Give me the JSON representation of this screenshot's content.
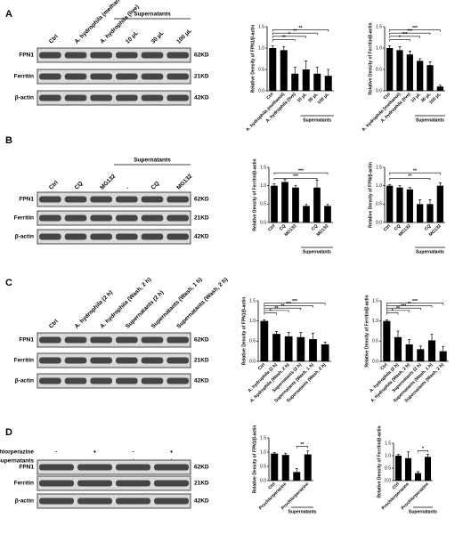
{
  "panels": [
    {
      "letter": "A",
      "lanes": [
        "Ctrl",
        "A. hydrophila (methanol)",
        "A. hydrophila (live)",
        "10 μL",
        "30 μL",
        "100 μL"
      ],
      "group_label": "Supernatants",
      "rows": [
        {
          "name": "FPN1",
          "size": "62KD"
        },
        {
          "name": "Ferritin",
          "size": "21KD"
        },
        {
          "name": "β-actin",
          "size": "42KD"
        }
      ]
    },
    {
      "letter": "B",
      "lanes": [
        "Ctrl",
        "CQ",
        "MG132",
        "-",
        "CQ",
        "MG132"
      ],
      "group_label": "Supernatants",
      "rows": [
        {
          "name": "FPN1",
          "size": "62KD"
        },
        {
          "name": "Ferritin",
          "size": "21KD"
        },
        {
          "name": "β-actin",
          "size": "42KD"
        }
      ]
    },
    {
      "letter": "C",
      "lanes": [
        "Ctrl",
        "A. hydrophila (2 h)",
        "A. hydrophila (Wash, 2 h)",
        "Supernatants (2 h)",
        "Supernatants (Wash, 1 h)",
        "Supernatants (Wash, 2 h)"
      ],
      "rows": [
        {
          "name": "FPN1",
          "size": "62KD"
        },
        {
          "name": "Ferritin",
          "size": "21KD"
        },
        {
          "name": "β-actin",
          "size": "42KD"
        }
      ]
    },
    {
      "letter": "D",
      "treatments": [
        {
          "name": "Prochlorperazine",
          "marks": [
            "-",
            "+",
            "-",
            "+"
          ]
        },
        {
          "name": "Supernatants",
          "marks": [
            "-",
            "-",
            "+",
            "+"
          ]
        }
      ],
      "rows": [
        {
          "name": "FPN1",
          "size": "62KD"
        },
        {
          "name": "Ferritin",
          "size": "21KD"
        },
        {
          "name": "β-actin",
          "size": "42KD"
        }
      ]
    }
  ],
  "chart_data": [
    {
      "type": "bar",
      "ylabel": "Relative Density of FPN1/β-actin",
      "categories": [
        "Ctrl",
        "A. hydrophila (methanol)",
        "A. hydrophila (live)",
        "10 μL",
        "30 μL",
        "100 μL"
      ],
      "group_label": "Supernatants",
      "values": [
        1.0,
        0.95,
        0.4,
        0.5,
        0.4,
        0.35
      ],
      "errors": [
        0.05,
        0.08,
        0.15,
        0.2,
        0.15,
        0.15
      ],
      "color": "#000000",
      "ylim": [
        0,
        1.5
      ],
      "yticks": [
        {
          "value": 0,
          "label": "0.0"
        },
        0.5,
        {
          "value": 1,
          "label": "1.0"
        },
        1.5
      ],
      "annotations": [
        "**",
        "*",
        "**",
        "**"
      ]
    },
    {
      "type": "bar",
      "ylabel": "Relative Density of Ferritin/β-actin",
      "categories": [
        "Ctrl",
        "A. hydrophila (methanol)",
        "A. hydrophila (live)",
        "10 μL",
        "30 μL",
        "100 μL"
      ],
      "group_label": "Supernatants",
      "values": [
        1.0,
        0.95,
        0.85,
        0.7,
        0.6,
        0.1
      ],
      "errors": [
        0.05,
        0.08,
        0.08,
        0.05,
        0.08,
        0.03
      ],
      "color": "#000000",
      "ylim": [
        0,
        1.5
      ],
      "yticks": [
        {
          "value": 0,
          "label": "0.0"
        },
        0.5,
        {
          "value": 1,
          "label": "1.0"
        },
        1.5
      ],
      "annotations": [
        "*",
        "***",
        "***",
        "***"
      ]
    },
    {
      "type": "bar",
      "ylabel": "Relative Density of Ferritin/β-actin",
      "categories": [
        "Ctrl",
        "CQ",
        "MG132",
        null,
        "CQ",
        "MG132"
      ],
      "group_label": "Supernatants",
      "values": [
        1.0,
        1.1,
        0.95,
        0.45,
        0.95,
        0.45
      ],
      "errors": [
        0.05,
        0.08,
        0.06,
        0.04,
        0.2,
        0.04
      ],
      "color": "#000000",
      "ylim": [
        0,
        1.5
      ],
      "yticks": [
        {
          "value": 0,
          "label": "0.0"
        },
        0.5,
        {
          "value": 1,
          "label": "1.0"
        },
        1.5
      ],
      "annotations": [
        "***",
        "***"
      ]
    },
    {
      "type": "bar",
      "ylabel": "Relative Density of FPN/β-actin",
      "categories": [
        "Ctrl",
        "CQ",
        "MG132",
        null,
        "CQ",
        "MG132"
      ],
      "group_label": "Supernatants",
      "values": [
        1.0,
        0.95,
        0.9,
        0.5,
        0.5,
        1.0
      ],
      "errors": [
        0.03,
        0.05,
        0.05,
        0.12,
        0.12,
        0.08
      ],
      "color": "#000000",
      "ylim": [
        0,
        1.5
      ],
      "yticks": [
        {
          "value": 0,
          "label": "0.0"
        },
        0.5,
        {
          "value": 1,
          "label": "1.0"
        },
        1.5
      ],
      "annotations": [
        "**",
        "**"
      ]
    },
    {
      "type": "bar",
      "ylabel": "Relative Density of FPN1/β-actin",
      "categories": [
        "Ctrl",
        "A. hydrophila (2 h)",
        "A. hydrophila (Wash, 2 h)",
        "Supernatants (2 h)",
        "Supernatants (Wash, 1 h)",
        "Supernatants (Wash, 2 h)"
      ],
      "values": [
        1.0,
        0.68,
        0.62,
        0.6,
        0.55,
        0.42
      ],
      "errors": [
        0.03,
        0.06,
        0.1,
        0.12,
        0.15,
        0.06
      ],
      "color": "#000000",
      "ylim": [
        0,
        1.5
      ],
      "yticks": [
        {
          "value": 0,
          "label": "0.0"
        },
        0.5,
        {
          "value": 1,
          "label": "1.0"
        },
        1.5
      ],
      "annotations": [
        "*",
        "**",
        "**",
        "***",
        "***"
      ]
    },
    {
      "type": "bar",
      "ylabel": "Relative Density of Ferritin/β-actin",
      "categories": [
        "Ctrl",
        "A. hydrophila (2 h)",
        "A. hydrophila (Wash, 2 h)",
        "Supernatants (2 h)",
        "Supernatants (Wash, 1 h)",
        "Supernatants (Wash, 2 h)"
      ],
      "values": [
        1.0,
        0.6,
        0.42,
        0.3,
        0.52,
        0.25
      ],
      "errors": [
        0.03,
        0.15,
        0.12,
        0.08,
        0.15,
        0.12
      ],
      "color": "#000000",
      "ylim": [
        0,
        1.5
      ],
      "yticks": [
        {
          "value": 0,
          "label": "0.0"
        },
        0.5,
        {
          "value": 1,
          "label": "1.0"
        },
        1.5
      ],
      "annotations": [
        "*",
        "**",
        "***",
        "**",
        "***"
      ]
    },
    {
      "type": "bar",
      "ylabel": "Relative Density of FPN1/β-actin",
      "categories": [
        "Ctrl",
        "Prochlorperazine",
        null,
        "Prochlorperazine"
      ],
      "group_label": "Supernatants",
      "values": [
        0.95,
        0.9,
        0.3,
        0.92
      ],
      "errors": [
        0.04,
        0.06,
        0.12,
        0.12
      ],
      "color": "#000000",
      "ylim": [
        0,
        1.5
      ],
      "yticks": [
        {
          "value": 0,
          "label": "0.0"
        },
        0.5,
        {
          "value": 1,
          "label": "1.0"
        },
        1.5
      ],
      "annotations": [
        "**"
      ]
    },
    {
      "type": "bar",
      "ylabel": "Relative Density of Ferritin/β-actin",
      "categories": [
        "Ctrl",
        "Prochlorperazine",
        null,
        "Prochlorperazine"
      ],
      "group_label": "Supernatants",
      "values": [
        1.0,
        0.9,
        0.3,
        0.95
      ],
      "errors": [
        0.05,
        0.25,
        0.06,
        0.1
      ],
      "color": "#000000",
      "ylim": [
        0,
        1.5
      ],
      "yticks": [
        {
          "value": 0,
          "label": "0.0"
        },
        0.5,
        {
          "value": 1,
          "label": "1.0"
        },
        1.5
      ],
      "annotations": [
        "*"
      ]
    }
  ]
}
